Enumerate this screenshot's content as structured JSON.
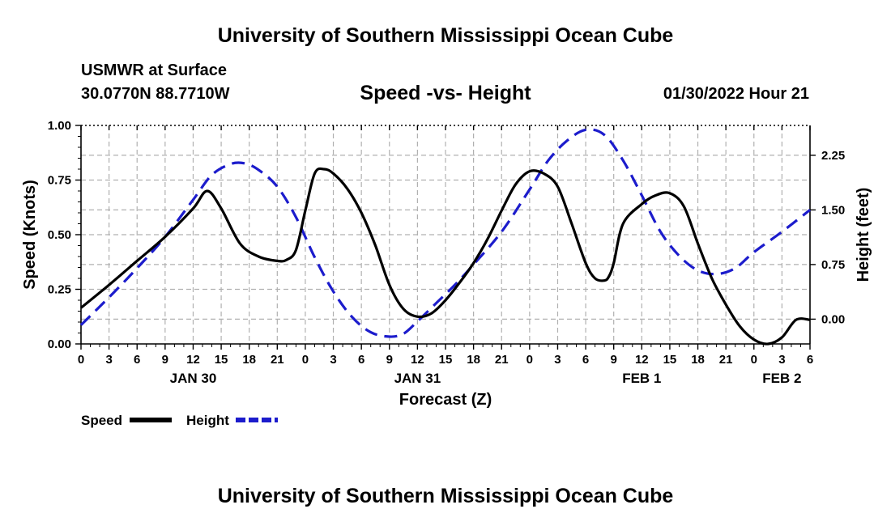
{
  "header": {
    "title": "University of Southern Mississippi Ocean Cube",
    "station": "USMWR at Surface",
    "coords": "30.0770N  88.7710W",
    "subtitle": "Speed -vs- Height",
    "datetime": "01/30/2022 Hour 21"
  },
  "footer": {
    "title": "University of Southern Mississippi Ocean Cube"
  },
  "chart_data": {
    "type": "line",
    "title": "Speed -vs- Height",
    "xlabel": "Forecast (Z)",
    "ylabel_left": "Speed (Knots)",
    "ylabel_right": "Height (feet)",
    "x_unit": "forecast hours from JAN 30 00Z",
    "xlim": [
      0,
      78
    ],
    "x_ticks": [
      0,
      3,
      6,
      9,
      12,
      15,
      18,
      21,
      24,
      27,
      30,
      33,
      36,
      39,
      42,
      45,
      48,
      51,
      54,
      57,
      60,
      63,
      66,
      69,
      72,
      75,
      78
    ],
    "x_tick_labels": [
      "0",
      "3",
      "6",
      "9",
      "12",
      "15",
      "18",
      "21",
      "0",
      "3",
      "6",
      "9",
      "12",
      "15",
      "18",
      "21",
      "0",
      "3",
      "6",
      "9",
      "12",
      "15",
      "18",
      "21",
      "0",
      "3",
      "6"
    ],
    "day_labels": [
      {
        "label": "JAN 30",
        "x": 12
      },
      {
        "label": "JAN 31",
        "x": 36
      },
      {
        "label": "FEB 1",
        "x": 60
      },
      {
        "label": "FEB 2",
        "x": 75
      }
    ],
    "ylim_left": [
      0,
      1.0
    ],
    "y_ticks_left": [
      0.0,
      0.25,
      0.5,
      0.75,
      1.0
    ],
    "y_tick_labels_left": [
      "0.00",
      "0.25",
      "0.50",
      "0.75",
      "1.00"
    ],
    "ylim_right": [
      -0.34,
      2.66
    ],
    "y_ticks_right": [
      0.0,
      0.75,
      1.5,
      2.25
    ],
    "y_tick_labels_right": [
      "0.00",
      "0.75",
      "1.50",
      "2.25"
    ],
    "grid": true,
    "series": [
      {
        "name": "Speed",
        "axis": "left",
        "color": "#000000",
        "style": "solid",
        "x": [
          0,
          3,
          6,
          9,
          12,
          13.5,
          15,
          17,
          19,
          21,
          22,
          23,
          24,
          25,
          26,
          27,
          28.5,
          30,
          31.5,
          33,
          34.5,
          36,
          37.5,
          39,
          40.5,
          42,
          43.5,
          45,
          46.5,
          48,
          49.5,
          51,
          52.5,
          54,
          55,
          56,
          56.5,
          57,
          58,
          60,
          61.5,
          63,
          64.5,
          66,
          67.5,
          69,
          70.5,
          72,
          73.5,
          75,
          76.5,
          78
        ],
        "values": [
          0.165,
          0.27,
          0.38,
          0.49,
          0.62,
          0.7,
          0.62,
          0.46,
          0.4,
          0.38,
          0.385,
          0.43,
          0.61,
          0.78,
          0.8,
          0.78,
          0.71,
          0.6,
          0.45,
          0.27,
          0.16,
          0.125,
          0.14,
          0.2,
          0.28,
          0.37,
          0.48,
          0.61,
          0.73,
          0.79,
          0.78,
          0.72,
          0.55,
          0.37,
          0.3,
          0.29,
          0.31,
          0.37,
          0.55,
          0.64,
          0.68,
          0.69,
          0.63,
          0.46,
          0.3,
          0.18,
          0.08,
          0.02,
          0.0,
          0.03,
          0.11,
          0.11
        ]
      },
      {
        "name": "Height",
        "axis": "right",
        "color": "#1c1ccc",
        "style": "dashed",
        "x": [
          0,
          3,
          6,
          9,
          12,
          14,
          16,
          17.5,
          19,
          21,
          23,
          25,
          27,
          29,
          31,
          33,
          34.5,
          36,
          38,
          40,
          42,
          45,
          48,
          50,
          52,
          54,
          56,
          58,
          60,
          62,
          64,
          66,
          68,
          70,
          72,
          75,
          78
        ],
        "values": [
          -0.08,
          0.3,
          0.7,
          1.13,
          1.64,
          1.98,
          2.13,
          2.14,
          2.05,
          1.82,
          1.4,
          0.85,
          0.38,
          0.03,
          -0.18,
          -0.24,
          -0.2,
          -0.03,
          0.22,
          0.47,
          0.75,
          1.2,
          1.78,
          2.18,
          2.45,
          2.6,
          2.53,
          2.18,
          1.7,
          1.2,
          0.87,
          0.67,
          0.62,
          0.7,
          0.92,
          1.2,
          1.5
        ]
      }
    ],
    "legend": [
      {
        "label": "Speed",
        "style": "solid",
        "color": "#000000"
      },
      {
        "label": "Height",
        "style": "dashed",
        "color": "#1c1ccc"
      }
    ]
  }
}
